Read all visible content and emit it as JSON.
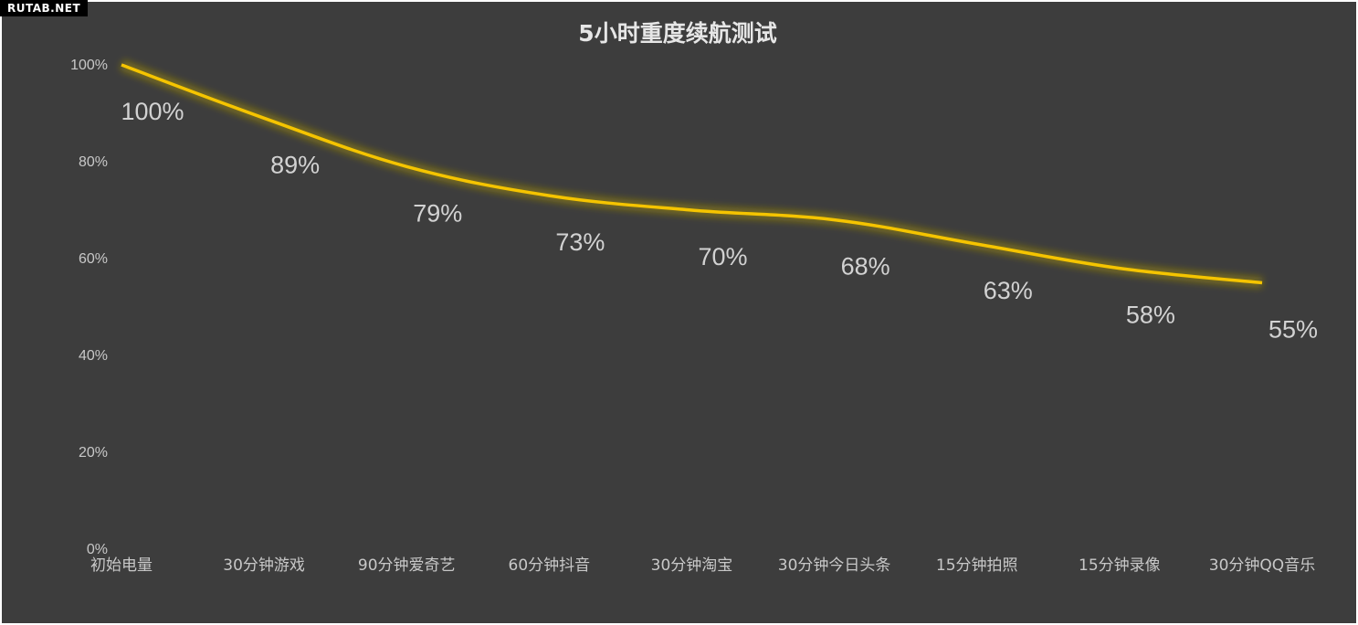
{
  "watermark": "RUTAB.NET",
  "chart_data": {
    "type": "line",
    "title": "5小时重度续航测试",
    "categories": [
      "初始电量",
      "30分钟游戏",
      "90分钟爱奇艺",
      "60分钟抖音",
      "30分钟淘宝",
      "30分钟今日头条",
      "15分钟拍照",
      "15分钟录像",
      "30分钟QQ音乐"
    ],
    "series": [
      {
        "values": [
          100,
          89,
          79,
          73,
          70,
          68,
          63,
          58,
          55
        ],
        "color": "#f5c400"
      }
    ],
    "data_labels": [
      "100%",
      "89%",
      "79%",
      "73%",
      "70%",
      "68%",
      "63%",
      "58%",
      "55%"
    ],
    "y_ticks": [
      "0%",
      "20%",
      "40%",
      "60%",
      "80%",
      "100%"
    ],
    "y_tick_values": [
      0,
      20,
      40,
      60,
      80,
      100
    ],
    "ylim": [
      0,
      100
    ],
    "grid": false,
    "legend": "none",
    "colors": {
      "background": "#3d3d3d",
      "line": "#f5c400",
      "text": "#c8c8c8"
    }
  }
}
